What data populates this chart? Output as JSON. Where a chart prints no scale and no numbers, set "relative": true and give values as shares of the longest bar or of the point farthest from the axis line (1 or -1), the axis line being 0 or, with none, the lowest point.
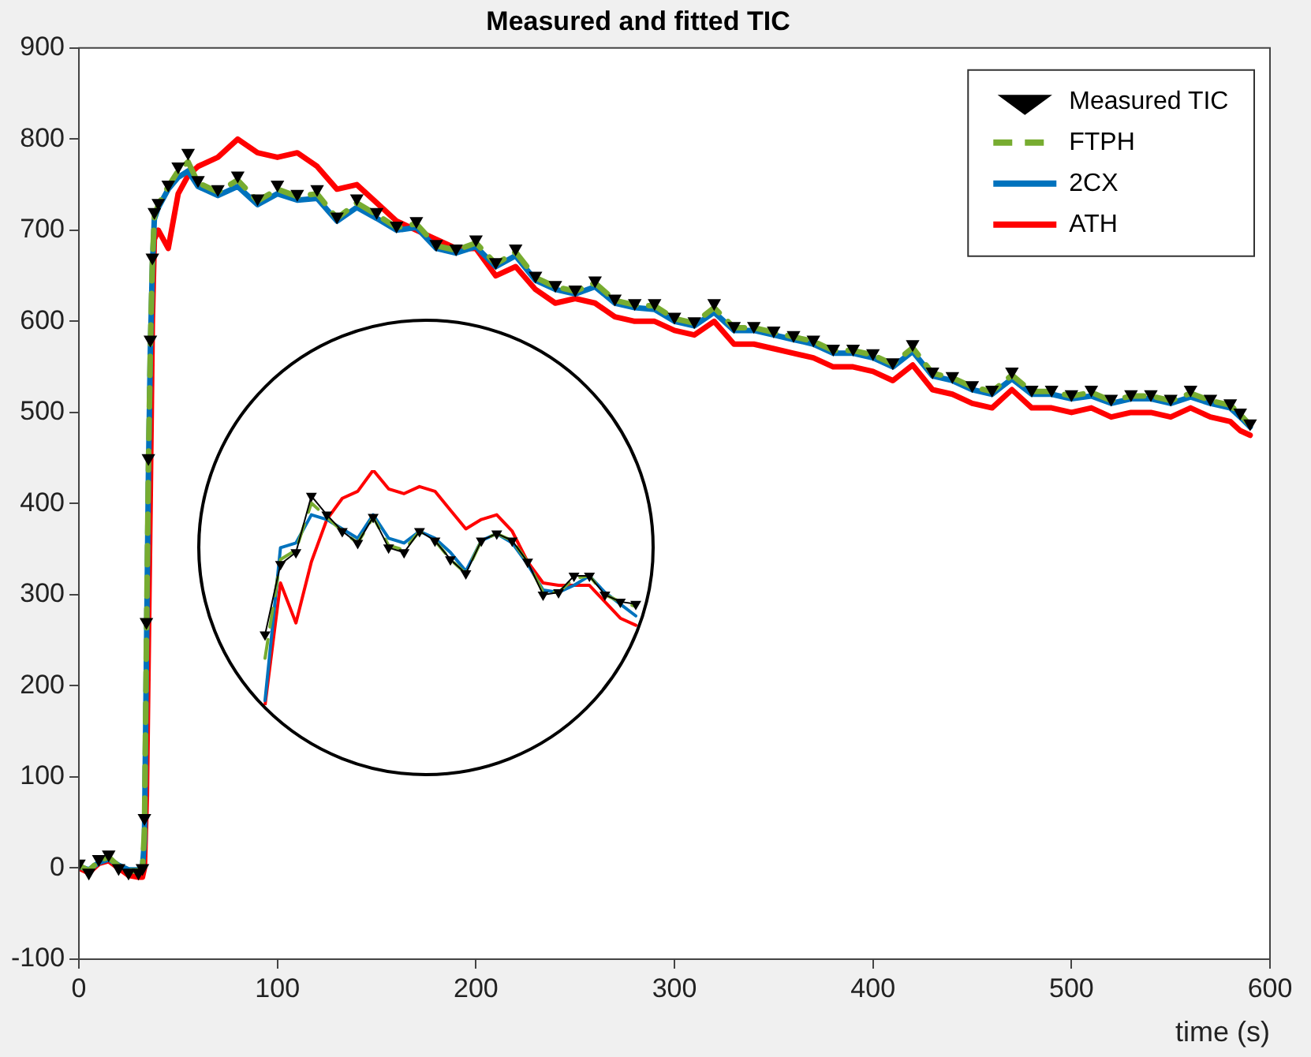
{
  "chart_data": [
    {
      "type": "line",
      "title": "Measured and fitted TIC",
      "xlabel": "time (s)",
      "x": [
        0,
        5,
        10,
        15,
        20,
        25,
        30,
        32,
        33,
        34,
        35,
        36,
        37,
        38,
        40,
        45,
        50,
        55,
        60,
        70,
        80,
        90,
        100,
        110,
        120,
        130,
        140,
        150,
        160,
        170,
        180,
        190,
        200,
        210,
        220,
        230,
        240,
        250,
        260,
        270,
        280,
        290,
        300,
        310,
        320,
        330,
        340,
        350,
        360,
        370,
        380,
        390,
        400,
        410,
        420,
        430,
        440,
        450,
        460,
        470,
        480,
        490,
        500,
        510,
        520,
        530,
        540,
        550,
        560,
        570,
        580,
        585,
        590
      ],
      "xlim": [
        0,
        600
      ],
      "xticks": [
        0,
        100,
        200,
        300,
        400,
        500,
        600
      ],
      "ylim": [
        -100,
        900
      ],
      "yticks": [
        -100,
        0,
        100,
        200,
        300,
        400,
        500,
        600,
        700,
        800,
        900
      ],
      "grid": false,
      "legend": "top right",
      "series": [
        {
          "name": "Measured TIC",
          "type": "scatter",
          "marker": "triangle",
          "color": "#000000",
          "values": [
            5,
            -5,
            10,
            15,
            0,
            -5,
            -5,
            0,
            55,
            270,
            450,
            580,
            670,
            720,
            730,
            750,
            770,
            785,
            755,
            745,
            760,
            735,
            750,
            740,
            745,
            715,
            735,
            720,
            705,
            710,
            685,
            680,
            690,
            665,
            680,
            650,
            640,
            635,
            645,
            625,
            620,
            620,
            605,
            600,
            620,
            595,
            595,
            590,
            585,
            580,
            570,
            570,
            565,
            555,
            575,
            545,
            540,
            530,
            525,
            545,
            525,
            525,
            520,
            525,
            515,
            520,
            520,
            515,
            525,
            515,
            510,
            500,
            488
          ]
        },
        {
          "name": "FTPH",
          "line_style": "dashed",
          "color": "#77ac30",
          "values": [
            3,
            -3,
            8,
            12,
            2,
            -3,
            -3,
            0,
            40,
            250,
            440,
            575,
            665,
            715,
            728,
            748,
            765,
            775,
            752,
            742,
            755,
            732,
            745,
            737,
            740,
            713,
            730,
            717,
            703,
            707,
            683,
            678,
            686,
            663,
            676,
            648,
            638,
            633,
            642,
            623,
            618,
            617,
            603,
            598,
            615,
            593,
            593,
            588,
            583,
            578,
            568,
            568,
            563,
            553,
            571,
            543,
            538,
            528,
            523,
            541,
            523,
            523,
            518,
            522,
            513,
            518,
            518,
            513,
            521,
            513,
            508,
            498,
            486
          ]
        },
        {
          "name": "2CX",
          "line_style": "solid",
          "color": "#0072bd",
          "values": [
            2,
            -2,
            6,
            10,
            3,
            -2,
            -2,
            0,
            30,
            230,
            430,
            570,
            660,
            712,
            725,
            745,
            758,
            765,
            748,
            738,
            748,
            728,
            740,
            733,
            735,
            710,
            725,
            713,
            700,
            703,
            680,
            675,
            682,
            660,
            672,
            645,
            635,
            630,
            638,
            620,
            615,
            613,
            600,
            595,
            610,
            590,
            590,
            585,
            580,
            575,
            565,
            565,
            560,
            550,
            567,
            540,
            535,
            525,
            520,
            537,
            520,
            520,
            515,
            518,
            510,
            515,
            515,
            510,
            517,
            510,
            505,
            495,
            484
          ]
        },
        {
          "name": "ATH",
          "line_style": "solid",
          "color": "#ff0000",
          "values": [
            0,
            -5,
            5,
            8,
            0,
            -8,
            -10,
            -10,
            0,
            80,
            250,
            420,
            600,
            690,
            700,
            680,
            740,
            760,
            770,
            780,
            800,
            785,
            780,
            785,
            770,
            745,
            750,
            730,
            710,
            700,
            690,
            680,
            680,
            650,
            660,
            635,
            620,
            625,
            620,
            605,
            600,
            600,
            590,
            585,
            600,
            575,
            575,
            570,
            565,
            560,
            550,
            550,
            545,
            535,
            552,
            525,
            520,
            510,
            505,
            525,
            505,
            505,
            500,
            505,
            495,
            500,
            500,
            495,
            505,
            495,
            490,
            480,
            475
          ]
        }
      ]
    },
    {
      "type": "line",
      "relative": true,
      "categories": [
        null,
        null,
        null,
        null,
        null,
        null,
        null,
        null,
        null,
        null,
        null,
        null,
        null,
        null,
        null,
        null,
        null,
        null,
        null,
        null,
        null,
        null,
        null,
        null,
        null
      ],
      "series": [
        {
          "marker": "triangle",
          "color": "#000000",
          "values": [
            0.3,
            0.6,
            0.65,
            0.89,
            0.81,
            0.74,
            0.69,
            0.8,
            0.67,
            0.65,
            0.74,
            0.7,
            0.62,
            0.56,
            0.7,
            0.73,
            0.7,
            0.61,
            0.47,
            0.48,
            0.55,
            0.55,
            0.47,
            0.44,
            0.43
          ]
        },
        {
          "line_style": "dashed",
          "color": "#77ac30",
          "values": [
            0.2,
            0.62,
            0.66,
            0.86,
            0.8,
            0.74,
            0.69,
            0.8,
            0.68,
            0.66,
            0.74,
            0.7,
            0.62,
            0.56,
            0.7,
            0.73,
            0.7,
            0.61,
            0.48,
            0.48,
            0.54,
            0.55,
            0.47,
            0.44,
            0.42
          ]
        },
        {
          "line_style": "solid",
          "color": "#0072bd",
          "values": [
            0.02,
            0.67,
            0.69,
            0.81,
            0.79,
            0.75,
            0.71,
            0.81,
            0.71,
            0.69,
            0.74,
            0.71,
            0.65,
            0.57,
            0.7,
            0.73,
            0.69,
            0.6,
            0.49,
            0.48,
            0.51,
            0.55,
            0.48,
            0.43,
            0.38
          ]
        },
        {
          "line_style": "solid",
          "color": "#ff0000",
          "values": [
            0,
            0.52,
            0.35,
            0.61,
            0.79,
            0.88,
            0.91,
            1,
            0.92,
            0.9,
            0.93,
            0.91,
            0.83,
            0.75,
            0.79,
            0.81,
            0.74,
            0.61,
            0.52,
            0.51,
            0.51,
            0.51,
            0.44,
            0.37,
            0.34
          ]
        }
      ]
    }
  ]
}
